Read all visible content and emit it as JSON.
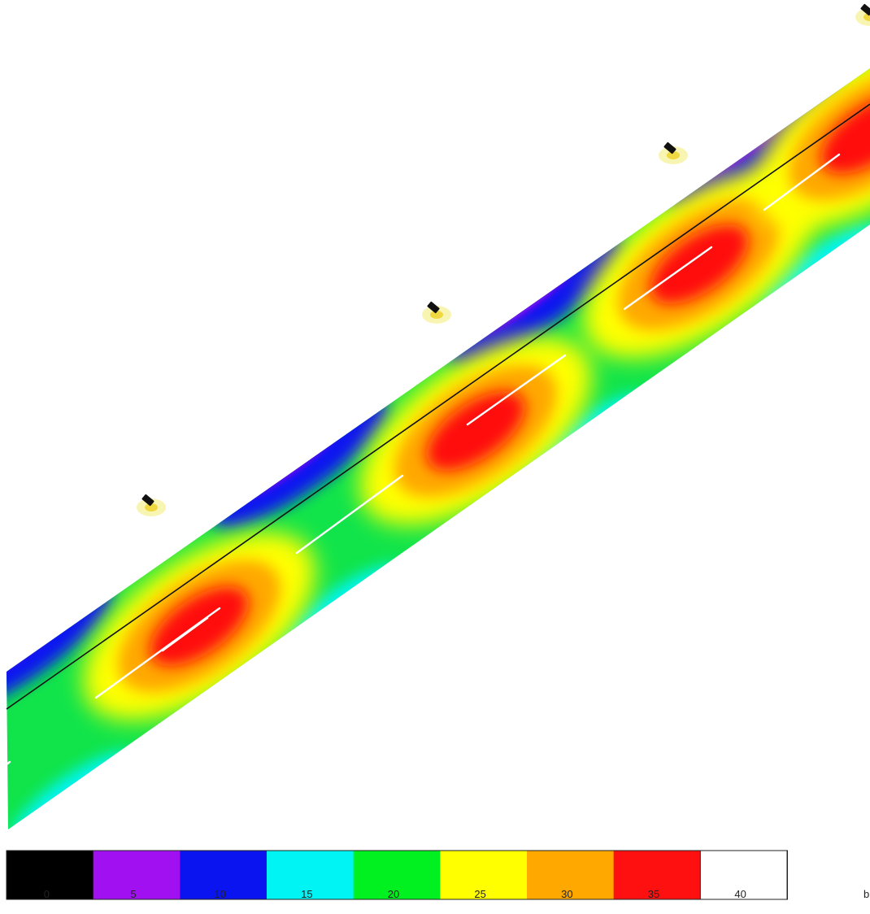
{
  "legend": {
    "colors": [
      "#000000",
      "#a010f0",
      "#0a14f0",
      "#00f4f4",
      "#00f020",
      "#ffff00",
      "#ffa800",
      "#ff1010",
      "#ffffff"
    ],
    "ticks": [
      "0",
      "5",
      "10",
      "15",
      "20",
      "25",
      "30",
      "35",
      "40"
    ]
  },
  "corner_label": "b",
  "scene": {
    "luminaire_icon": "street-lamp-icon",
    "luminaire_count": 4
  }
}
